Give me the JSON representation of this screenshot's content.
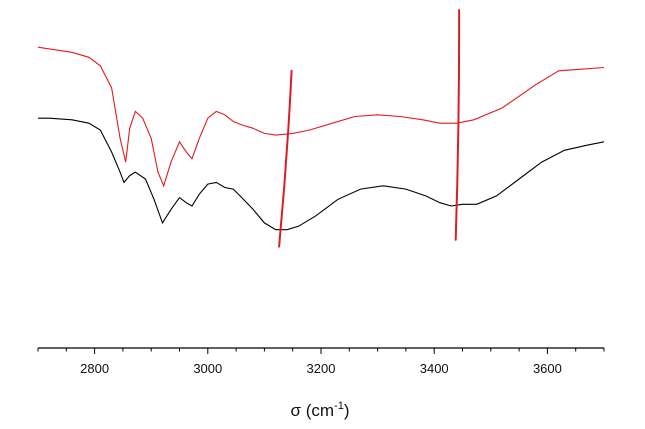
{
  "chart_data": {
    "type": "line",
    "xlabel_main": "σ (cm",
    "xlabel_sup": "-1",
    "xlabel_close": ")",
    "xlim": [
      2700,
      3700
    ],
    "xticks": [
      2800,
      3000,
      3200,
      3400,
      3600
    ],
    "ylabel": "",
    "grid": false,
    "legend": "none",
    "colors": {
      "red": "#e31a1c",
      "black": "#000000",
      "marker": "#d81f26"
    },
    "series": [
      {
        "color": "#e31a1c",
        "points": [
          [
            2700,
            0.89
          ],
          [
            2720,
            0.885
          ],
          [
            2760,
            0.875
          ],
          [
            2790,
            0.86
          ],
          [
            2810,
            0.835
          ],
          [
            2830,
            0.77
          ],
          [
            2845,
            0.62
          ],
          [
            2855,
            0.55
          ],
          [
            2862,
            0.65
          ],
          [
            2872,
            0.7
          ],
          [
            2885,
            0.68
          ],
          [
            2900,
            0.62
          ],
          [
            2912,
            0.52
          ],
          [
            2922,
            0.48
          ],
          [
            2935,
            0.55
          ],
          [
            2950,
            0.61
          ],
          [
            2962,
            0.58
          ],
          [
            2972,
            0.56
          ],
          [
            2985,
            0.62
          ],
          [
            3000,
            0.68
          ],
          [
            3015,
            0.7
          ],
          [
            3030,
            0.69
          ],
          [
            3045,
            0.67
          ],
          [
            3060,
            0.66
          ],
          [
            3080,
            0.65
          ],
          [
            3100,
            0.635
          ],
          [
            3120,
            0.63
          ],
          [
            3150,
            0.635
          ],
          [
            3180,
            0.645
          ],
          [
            3220,
            0.665
          ],
          [
            3260,
            0.685
          ],
          [
            3300,
            0.69
          ],
          [
            3340,
            0.685
          ],
          [
            3380,
            0.675
          ],
          [
            3410,
            0.665
          ],
          [
            3440,
            0.665
          ],
          [
            3470,
            0.675
          ],
          [
            3520,
            0.71
          ],
          [
            3580,
            0.78
          ],
          [
            3620,
            0.82
          ],
          [
            3660,
            0.825
          ],
          [
            3700,
            0.83
          ]
        ]
      },
      {
        "color": "#000000",
        "points": [
          [
            2700,
            0.68
          ],
          [
            2720,
            0.68
          ],
          [
            2760,
            0.675
          ],
          [
            2790,
            0.665
          ],
          [
            2810,
            0.645
          ],
          [
            2830,
            0.58
          ],
          [
            2845,
            0.52
          ],
          [
            2852,
            0.49
          ],
          [
            2862,
            0.51
          ],
          [
            2872,
            0.52
          ],
          [
            2890,
            0.5
          ],
          [
            2905,
            0.44
          ],
          [
            2920,
            0.37
          ],
          [
            2935,
            0.41
          ],
          [
            2950,
            0.445
          ],
          [
            2962,
            0.43
          ],
          [
            2972,
            0.42
          ],
          [
            2985,
            0.455
          ],
          [
            3000,
            0.485
          ],
          [
            3015,
            0.49
          ],
          [
            3030,
            0.475
          ],
          [
            3045,
            0.47
          ],
          [
            3060,
            0.445
          ],
          [
            3080,
            0.41
          ],
          [
            3100,
            0.37
          ],
          [
            3120,
            0.35
          ],
          [
            3140,
            0.35
          ],
          [
            3160,
            0.36
          ],
          [
            3190,
            0.39
          ],
          [
            3230,
            0.44
          ],
          [
            3270,
            0.47
          ],
          [
            3310,
            0.48
          ],
          [
            3350,
            0.47
          ],
          [
            3385,
            0.45
          ],
          [
            3410,
            0.43
          ],
          [
            3430,
            0.42
          ],
          [
            3450,
            0.425
          ],
          [
            3475,
            0.425
          ],
          [
            3510,
            0.45
          ],
          [
            3550,
            0.5
          ],
          [
            3590,
            0.55
          ],
          [
            3630,
            0.585
          ],
          [
            3670,
            0.6
          ],
          [
            3700,
            0.61
          ]
        ]
      }
    ],
    "markers": [
      {
        "x_top": 3148,
        "x_bottom": 3126,
        "y_top": 0.82,
        "y_bottom": 0.3
      },
      {
        "x_top": 3444,
        "x_bottom": 3438,
        "y_top": 1.0,
        "y_bottom": 0.32
      }
    ]
  }
}
